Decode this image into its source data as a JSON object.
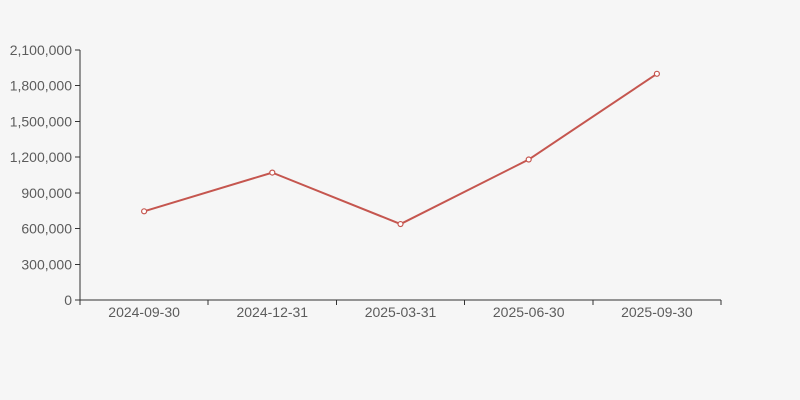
{
  "chart_data": {
    "type": "line",
    "title": "",
    "xlabel": "",
    "ylabel": "",
    "categories": [
      "2024-09-30",
      "2024-12-31",
      "2025-03-31",
      "2025-06-30",
      "2025-09-30"
    ],
    "values": [
      745000,
      1070000,
      638000,
      1180000,
      1900000
    ],
    "ylim": [
      0,
      2100000
    ],
    "y_ticks": [
      0,
      300000,
      600000,
      900000,
      1200000,
      1500000,
      1800000,
      2100000
    ],
    "y_tick_labels": [
      "0",
      "300,000",
      "600,000",
      "900,000",
      "1,200,000",
      "1,500,000",
      "1,800,000",
      "2,100,000"
    ],
    "grid": false,
    "legend": "none",
    "marker": "open-circle",
    "colors": {
      "background": "#f6f6f6",
      "line": "#c5564f",
      "marker_fill": "#ffffff",
      "axis": "#333333",
      "label": "#5c5c5c"
    }
  }
}
